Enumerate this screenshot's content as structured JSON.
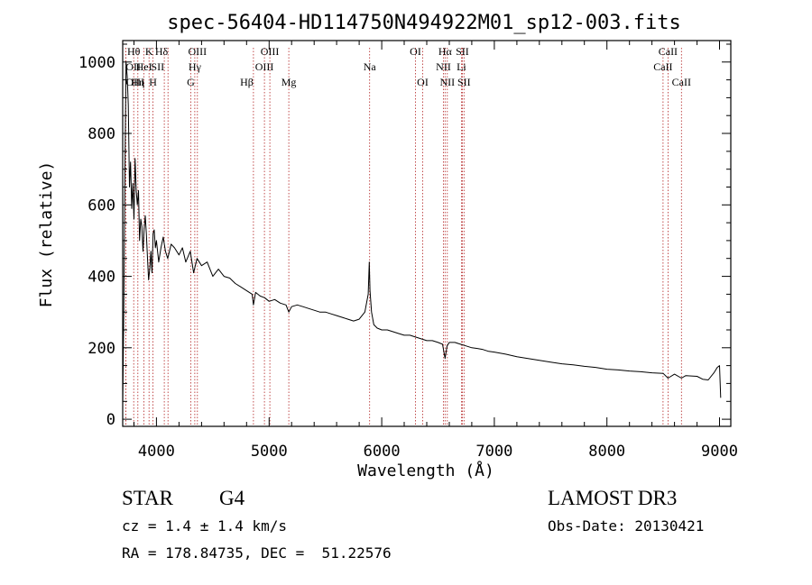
{
  "colors": {
    "axis": "#000000",
    "spectrum": "#000000",
    "line_marker": "#b22222",
    "background": "#ffffff"
  },
  "footer": {
    "object_class": "STAR",
    "subclass": "G4",
    "survey": "LAMOST DR3",
    "cz": "cz = 1.4 ± 1.4 km/s",
    "obs_date": "Obs-Date: 20130421",
    "coords": "RA = 178.84735, DEC =  51.22576"
  },
  "chart_data": {
    "type": "line",
    "title": "spec-56404-HD114750N494922M01_sp12-003.fits",
    "xlabel": "Wavelength (Å)",
    "ylabel": "Flux (relative)",
    "xlim": [
      3700,
      9100
    ],
    "ylim": [
      -20,
      1060
    ],
    "x_ticks": [
      4000,
      5000,
      6000,
      7000,
      8000,
      9000
    ],
    "x_tick_labels": [
      "4000",
      "5000",
      "6000",
      "7000",
      "8000",
      "9000"
    ],
    "y_ticks": [
      0,
      200,
      400,
      600,
      800,
      1000
    ],
    "y_tick_labels": [
      "0",
      "200",
      "400",
      "600",
      "800",
      "1000"
    ],
    "series": [
      {
        "name": "flux",
        "points": [
          [
            3700,
            40
          ],
          [
            3710,
            300
          ],
          [
            3720,
            700
          ],
          [
            3730,
            1000
          ],
          [
            3740,
            960
          ],
          [
            3750,
            880
          ],
          [
            3760,
            650
          ],
          [
            3770,
            720
          ],
          [
            3780,
            590
          ],
          [
            3790,
            660
          ],
          [
            3800,
            560
          ],
          [
            3810,
            730
          ],
          [
            3820,
            640
          ],
          [
            3830,
            600
          ],
          [
            3840,
            640
          ],
          [
            3850,
            500
          ],
          [
            3860,
            560
          ],
          [
            3870,
            540
          ],
          [
            3880,
            470
          ],
          [
            3890,
            530
          ],
          [
            3900,
            570
          ],
          [
            3910,
            520
          ],
          [
            3920,
            450
          ],
          [
            3930,
            390
          ],
          [
            3940,
            420
          ],
          [
            3950,
            470
          ],
          [
            3960,
            410
          ],
          [
            3970,
            520
          ],
          [
            3980,
            530
          ],
          [
            3990,
            480
          ],
          [
            4000,
            500
          ],
          [
            4020,
            440
          ],
          [
            4040,
            480
          ],
          [
            4060,
            510
          ],
          [
            4080,
            470
          ],
          [
            4100,
            450
          ],
          [
            4130,
            490
          ],
          [
            4160,
            480
          ],
          [
            4200,
            460
          ],
          [
            4230,
            480
          ],
          [
            4260,
            440
          ],
          [
            4300,
            470
          ],
          [
            4330,
            410
          ],
          [
            4360,
            450
          ],
          [
            4400,
            430
          ],
          [
            4450,
            440
          ],
          [
            4500,
            400
          ],
          [
            4550,
            420
          ],
          [
            4600,
            400
          ],
          [
            4650,
            395
          ],
          [
            4700,
            380
          ],
          [
            4750,
            370
          ],
          [
            4800,
            360
          ],
          [
            4850,
            350
          ],
          [
            4861,
            320
          ],
          [
            4880,
            355
          ],
          [
            4920,
            345
          ],
          [
            4960,
            340
          ],
          [
            5000,
            330
          ],
          [
            5050,
            335
          ],
          [
            5100,
            325
          ],
          [
            5150,
            320
          ],
          [
            5175,
            300
          ],
          [
            5200,
            315
          ],
          [
            5250,
            320
          ],
          [
            5300,
            315
          ],
          [
            5350,
            310
          ],
          [
            5400,
            305
          ],
          [
            5450,
            300
          ],
          [
            5500,
            300
          ],
          [
            5550,
            295
          ],
          [
            5600,
            290
          ],
          [
            5650,
            285
          ],
          [
            5700,
            280
          ],
          [
            5750,
            275
          ],
          [
            5800,
            280
          ],
          [
            5850,
            300
          ],
          [
            5880,
            350
          ],
          [
            5890,
            440
          ],
          [
            5896,
            360
          ],
          [
            5910,
            300
          ],
          [
            5930,
            265
          ],
          [
            5960,
            255
          ],
          [
            6000,
            250
          ],
          [
            6050,
            250
          ],
          [
            6100,
            245
          ],
          [
            6150,
            240
          ],
          [
            6200,
            235
          ],
          [
            6250,
            235
          ],
          [
            6300,
            230
          ],
          [
            6350,
            225
          ],
          [
            6400,
            220
          ],
          [
            6450,
            220
          ],
          [
            6500,
            215
          ],
          [
            6540,
            210
          ],
          [
            6563,
            170
          ],
          [
            6580,
            205
          ],
          [
            6600,
            215
          ],
          [
            6650,
            215
          ],
          [
            6700,
            210
          ],
          [
            6750,
            205
          ],
          [
            6800,
            200
          ],
          [
            6850,
            198
          ],
          [
            6900,
            195
          ],
          [
            6950,
            190
          ],
          [
            7000,
            188
          ],
          [
            7100,
            182
          ],
          [
            7200,
            175
          ],
          [
            7300,
            170
          ],
          [
            7400,
            165
          ],
          [
            7500,
            160
          ],
          [
            7600,
            155
          ],
          [
            7700,
            152
          ],
          [
            7800,
            148
          ],
          [
            7900,
            145
          ],
          [
            8000,
            140
          ],
          [
            8100,
            138
          ],
          [
            8200,
            135
          ],
          [
            8300,
            133
          ],
          [
            8400,
            130
          ],
          [
            8500,
            128
          ],
          [
            8542,
            115
          ],
          [
            8600,
            126
          ],
          [
            8662,
            115
          ],
          [
            8700,
            122
          ],
          [
            8800,
            120
          ],
          [
            8850,
            112
          ],
          [
            8900,
            110
          ],
          [
            8950,
            130
          ],
          [
            8980,
            145
          ],
          [
            9000,
            150
          ],
          [
            9010,
            60
          ]
        ]
      }
    ],
    "annotations": [
      {
        "label": "OII",
        "wavelength": 3727,
        "tier": 1,
        "align": "start"
      },
      {
        "label": "OIII",
        "wavelength": 3727,
        "tier": 2,
        "align": "start"
      },
      {
        "label": "Hθ",
        "wavelength": 3798,
        "tier": 0,
        "align": "middle"
      },
      {
        "label": "Hη",
        "wavelength": 3835,
        "tier": 2,
        "align": "middle"
      },
      {
        "label": "HeI",
        "wavelength": 3889,
        "tier": 1,
        "align": "middle"
      },
      {
        "label": "K",
        "wavelength": 3934,
        "tier": 0,
        "align": "middle"
      },
      {
        "label": "H",
        "wavelength": 3969,
        "tier": 2,
        "align": "middle"
      },
      {
        "label": "SII",
        "wavelength": 4069,
        "tier": 1,
        "align": "end"
      },
      {
        "label": "Hδ",
        "wavelength": 4102,
        "tier": 0,
        "align": "end"
      },
      {
        "label": "G",
        "wavelength": 4305,
        "tier": 2,
        "align": "middle"
      },
      {
        "label": "Hγ",
        "wavelength": 4340,
        "tier": 1,
        "align": "middle"
      },
      {
        "label": "OIII",
        "wavelength": 4363,
        "tier": 0,
        "align": "middle"
      },
      {
        "label": "Hβ",
        "wavelength": 4861,
        "tier": 2,
        "align": "end"
      },
      {
        "label": "OIII",
        "wavelength": 4959,
        "tier": 1,
        "align": "middle"
      },
      {
        "label": "OIII",
        "wavelength": 5007,
        "tier": 0,
        "align": "middle"
      },
      {
        "label": "Mg",
        "wavelength": 5175,
        "tier": 2,
        "align": "middle"
      },
      {
        "label": "Na",
        "wavelength": 5893,
        "tier": 1,
        "align": "middle"
      },
      {
        "label": "OI",
        "wavelength": 6300,
        "tier": 0,
        "align": "middle"
      },
      {
        "label": "OI",
        "wavelength": 6364,
        "tier": 2,
        "align": "middle"
      },
      {
        "label": "NII",
        "wavelength": 6548,
        "tier": 1,
        "align": "middle"
      },
      {
        "label": "Hα",
        "wavelength": 6563,
        "tier": 0,
        "align": "middle"
      },
      {
        "label": "NII",
        "wavelength": 6583,
        "tier": 2,
        "align": "middle"
      },
      {
        "label": "Li",
        "wavelength": 6708,
        "tier": 1,
        "align": "middle"
      },
      {
        "label": "SII",
        "wavelength": 6716,
        "tier": 0,
        "align": "middle"
      },
      {
        "label": "SII",
        "wavelength": 6731,
        "tier": 2,
        "align": "middle"
      },
      {
        "label": "CaII",
        "wavelength": 8498,
        "tier": 1,
        "align": "middle"
      },
      {
        "label": "CaII",
        "wavelength": 8542,
        "tier": 0,
        "align": "middle"
      },
      {
        "label": "CaII",
        "wavelength": 8662,
        "tier": 2,
        "align": "middle"
      }
    ]
  }
}
